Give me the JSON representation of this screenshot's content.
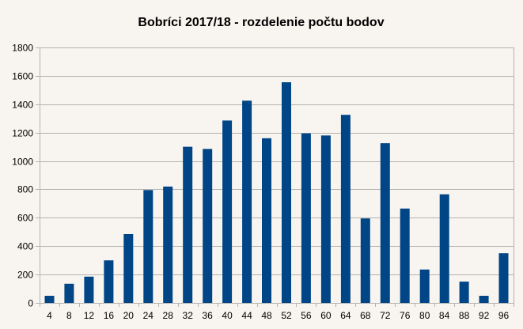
{
  "chart_data": {
    "type": "bar",
    "title": "Bobríci 2017/18 - rozdelenie počtu bodov",
    "xlabel": "",
    "ylabel": "",
    "ylim": [
      0,
      1800
    ],
    "yticks": [
      0,
      200,
      400,
      600,
      800,
      1000,
      1200,
      1400,
      1600,
      1800
    ],
    "grid": true,
    "legend": "none",
    "bar_color": "#004586",
    "grid_color": "#b3b3b3",
    "categories": [
      "4",
      "8",
      "12",
      "16",
      "20",
      "24",
      "28",
      "32",
      "36",
      "40",
      "44",
      "48",
      "52",
      "56",
      "60",
      "64",
      "68",
      "72",
      "76",
      "80",
      "84",
      "88",
      "92",
      "96"
    ],
    "values": [
      50,
      135,
      185,
      300,
      485,
      795,
      820,
      1100,
      1085,
      1285,
      1425,
      1160,
      1555,
      1195,
      1180,
      1325,
      595,
      1125,
      665,
      235,
      765,
      150,
      50,
      350
    ]
  }
}
